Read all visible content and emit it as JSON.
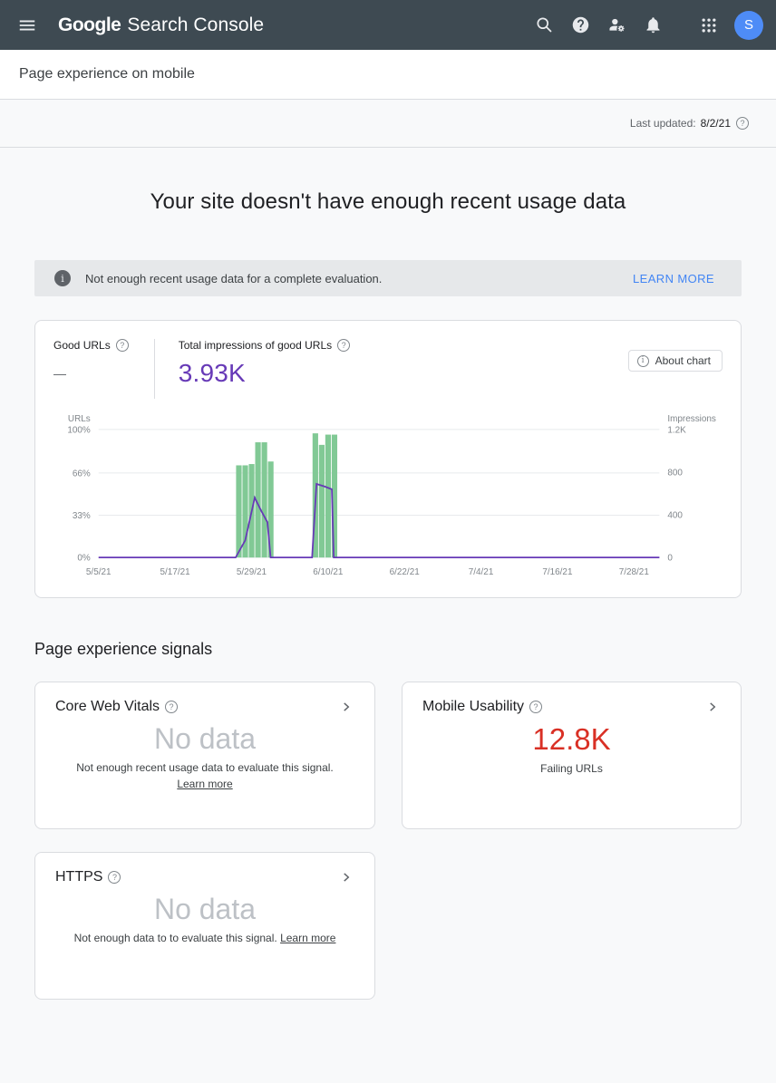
{
  "colors": {
    "header-bg": "#3e4a52",
    "accent-blue": "#4e8cf7",
    "link-blue": "#4285f4",
    "purple": "#673ab7",
    "bar-green": "#81c995",
    "error-red": "#d93025",
    "text-primary": "#202124",
    "text-secondary": "#5f6368",
    "border": "#dadce0",
    "page-bg": "#f8f9fa",
    "banner-bg": "#e6e8ea",
    "nodata-grey": "#bdc1c6"
  },
  "header": {
    "logo_google": "Google",
    "logo_product": "Search Console",
    "avatar_letter": "S"
  },
  "subheader": {
    "title": "Page experience on mobile"
  },
  "meta": {
    "last_updated_label": "Last updated:",
    "last_updated_value": "8/2/21"
  },
  "main": {
    "title": "Your site doesn't have enough recent usage data",
    "banner": {
      "text": "Not enough recent usage data for a complete evaluation.",
      "action_label": "LEARN MORE"
    }
  },
  "chart_card": {
    "good_urls_label": "Good URLs",
    "good_urls_value": "—",
    "impressions_label": "Total impressions of good URLs",
    "impressions_value": "3.93K",
    "about_chart_label": "About chart"
  },
  "chart_data": {
    "type": "bar+line",
    "title": "Good URLs (%) and impressions of good URLs over time",
    "left_axis": {
      "title": "URLs",
      "ticks": [
        {
          "pct": 100,
          "label": "100%"
        },
        {
          "pct": 66,
          "label": "66%"
        },
        {
          "pct": 33,
          "label": "33%"
        },
        {
          "pct": 0,
          "label": "0%"
        }
      ]
    },
    "right_axis": {
      "title": "Impressions",
      "max": 1200,
      "ticks": [
        {
          "value": 1200,
          "label": "1.2K"
        },
        {
          "value": 800,
          "label": "800"
        },
        {
          "value": 400,
          "label": "400"
        },
        {
          "value": 0,
          "label": "0"
        }
      ]
    },
    "x_axis": {
      "days": 88,
      "ticks": [
        {
          "day": 0,
          "label": "5/5/21"
        },
        {
          "day": 12,
          "label": "5/17/21"
        },
        {
          "day": 24,
          "label": "5/29/21"
        },
        {
          "day": 36,
          "label": "6/10/21"
        },
        {
          "day": 48,
          "label": "6/22/21"
        },
        {
          "day": 60,
          "label": "7/4/21"
        },
        {
          "day": 72,
          "label": "7/16/21"
        },
        {
          "day": 84,
          "label": "7/28/21"
        }
      ]
    },
    "bars": {
      "name": "Good URLs (%)",
      "color": "#81c995",
      "points": [
        {
          "day": 22,
          "pct": 72
        },
        {
          "day": 23,
          "pct": 72
        },
        {
          "day": 24,
          "pct": 73
        },
        {
          "day": 25,
          "pct": 90
        },
        {
          "day": 26,
          "pct": 90
        },
        {
          "day": 27,
          "pct": 75
        },
        {
          "day": 34,
          "pct": 97
        },
        {
          "day": 35,
          "pct": 88
        },
        {
          "day": 36,
          "pct": 96
        },
        {
          "day": 37,
          "pct": 96
        }
      ]
    },
    "line": {
      "name": "Impressions",
      "color": "#673ab7",
      "points": [
        {
          "day": 0,
          "value": 0
        },
        {
          "day": 21.5,
          "value": 0
        },
        {
          "day": 23,
          "value": 160
        },
        {
          "day": 24.5,
          "value": 560
        },
        {
          "day": 25.5,
          "value": 440
        },
        {
          "day": 26.5,
          "value": 330
        },
        {
          "day": 27,
          "value": 0
        },
        {
          "day": 33.5,
          "value": 0
        },
        {
          "day": 34.2,
          "value": 690
        },
        {
          "day": 35.5,
          "value": 665
        },
        {
          "day": 36.6,
          "value": 640
        },
        {
          "day": 36.9,
          "value": 0
        },
        {
          "day": 88,
          "value": 0
        }
      ]
    }
  },
  "signals": {
    "heading": "Page experience signals",
    "cards": [
      {
        "title": "Core Web Vitals",
        "value": "No data",
        "caption": "Not enough recent usage data to evaluate this signal.",
        "link_label": "Learn more"
      },
      {
        "title": "Mobile Usability",
        "value": "12.8K",
        "caption": "Failing URLs"
      },
      {
        "title": "HTTPS",
        "value": "No data",
        "caption": "Not enough data to to evaluate this signal.",
        "link_label": "Learn more"
      }
    ]
  }
}
